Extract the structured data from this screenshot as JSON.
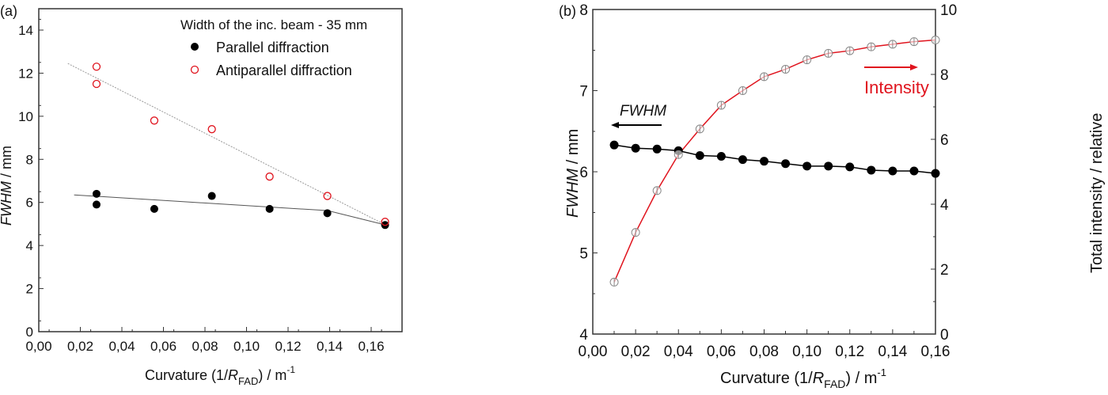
{
  "chart_data": [
    {
      "type": "scatter",
      "panel_label": "(a)",
      "legend_title": "Width of the inc. beam - 35 mm",
      "legend_position": "top-right",
      "xlabel": "Curvature (1/R_FAD) / m^-1",
      "xlabel_parts": {
        "main": "Curvature (1/",
        "italic": "R",
        "sub": "FAD",
        "after": ") / m",
        "sup": "-1"
      },
      "ylabel": "FWHM / mm",
      "ylabel_parts": {
        "italic": "FWHM",
        "after": " / mm"
      },
      "xlim": [
        0,
        0.175
      ],
      "ylim": [
        0,
        15
      ],
      "xticks": [
        "0,00",
        "0,02",
        "0,04",
        "0,06",
        "0,08",
        "0,10",
        "0,12",
        "0,14",
        "0,16"
      ],
      "yticks": [
        "0",
        "2",
        "4",
        "6",
        "8",
        "10",
        "12",
        "14"
      ],
      "grid": false,
      "series": [
        {
          "name": "Parallel diffraction",
          "color": "#000000",
          "marker": "filled-circle",
          "x": [
            0.0278,
            0.0278,
            0.0556,
            0.0833,
            0.1111,
            0.1389,
            0.1667
          ],
          "y": [
            6.4,
            5.9,
            5.7,
            6.3,
            5.7,
            5.5,
            4.95
          ],
          "fit": {
            "x": [
              0.017,
              0.139,
              0.167
            ],
            "y": [
              6.35,
              5.62,
              4.95
            ],
            "color": "#555555"
          }
        },
        {
          "name": "Antiparallel diffraction",
          "color": "#e0141e",
          "marker": "open-circle",
          "x": [
            0.0278,
            0.0278,
            0.0556,
            0.0833,
            0.1111,
            0.1389,
            0.1667
          ],
          "y": [
            12.3,
            11.5,
            9.8,
            9.4,
            7.2,
            6.3,
            5.1
          ],
          "fit": {
            "x": [
              0.014,
              0.167
            ],
            "y": [
              12.45,
              4.95
            ],
            "color": "#999999"
          }
        }
      ]
    },
    {
      "type": "line",
      "panel_label": "(b)",
      "xlabel": "Curvature (1/R_FAD) / m^-1",
      "xlabel_parts": {
        "main": "Curvature (1/",
        "italic": "R",
        "sub": "FAD",
        "after": ") / m",
        "sup": "-1"
      },
      "ylabel": "FWHM / mm",
      "ylabel_parts": {
        "italic": "FWHM",
        "after": " / mm"
      },
      "y2label": "Total intensity / relative",
      "xlim": [
        0,
        0.16
      ],
      "ylim": [
        4,
        8
      ],
      "y2lim": [
        0,
        10
      ],
      "xticks": [
        "0,00",
        "0,02",
        "0,04",
        "0,06",
        "0,08",
        "0,10",
        "0,12",
        "0,14",
        "0,16"
      ],
      "yticks": [
        "4",
        "5",
        "6",
        "7",
        "8"
      ],
      "y2ticks": [
        "0",
        "2",
        "4",
        "6",
        "8",
        "10"
      ],
      "grid": false,
      "annotations": [
        {
          "text": "FWHM",
          "arrow": "left",
          "color": "#000000"
        },
        {
          "text": "Intensity",
          "arrow": "right",
          "color": "#e0141e"
        }
      ],
      "x": [
        0.01,
        0.02,
        0.03,
        0.04,
        0.05,
        0.06,
        0.07,
        0.08,
        0.09,
        0.1,
        0.11,
        0.12,
        0.13,
        0.14,
        0.15,
        0.16
      ],
      "series": [
        {
          "name": "FWHM",
          "axis": "left",
          "color": "#000000",
          "marker": "filled-circle",
          "y": [
            6.33,
            6.29,
            6.28,
            6.26,
            6.2,
            6.19,
            6.15,
            6.13,
            6.1,
            6.07,
            6.07,
            6.06,
            6.02,
            6.01,
            6.01,
            5.98
          ]
        },
        {
          "name": "Intensity",
          "axis": "right",
          "color": "#e0141e",
          "marker": "open-circle-errorbar",
          "y": [
            1.6,
            3.13,
            4.42,
            5.53,
            6.32,
            7.05,
            7.5,
            7.93,
            8.16,
            8.45,
            8.65,
            8.73,
            8.85,
            8.93,
            9.01,
            9.06
          ]
        }
      ]
    }
  ]
}
